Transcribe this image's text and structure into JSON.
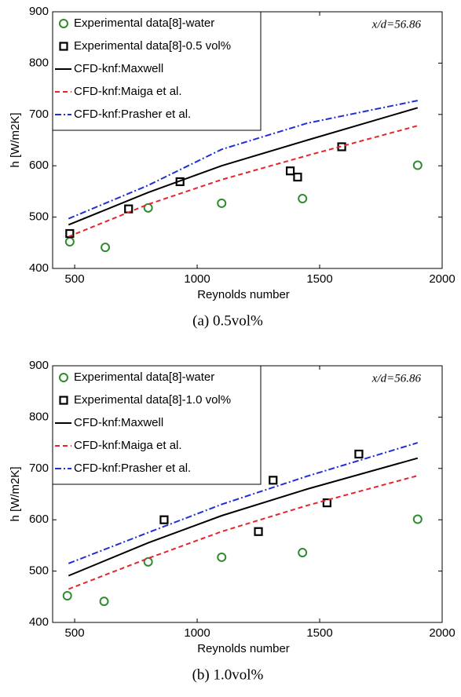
{
  "chart_data": [
    {
      "type": "line",
      "caption": "(a)  0.5vol%",
      "annotation": "x/d=56.86",
      "xlabel": "Reynolds number",
      "ylabel": "h [W/m2K]",
      "xlim": [
        410,
        2000
      ],
      "ylim": [
        400,
        900
      ],
      "xticks": [
        500,
        1000,
        1500,
        2000
      ],
      "yticks": [
        400,
        500,
        600,
        700,
        800,
        900
      ],
      "grid": false,
      "series": [
        {
          "name": "Experimental data[8]-water",
          "color": "#2e8b2e",
          "marker": "circle",
          "dash": "none",
          "x": [
            480,
            625,
            800,
            1100,
            1430,
            1900
          ],
          "values": [
            452,
            441,
            518,
            527,
            536,
            601
          ]
        },
        {
          "name": "Experimental data[8]-0.5 vol%",
          "color": "#000000",
          "marker": "square",
          "dash": "none",
          "x": [
            480,
            720,
            930,
            1380,
            1410,
            1590
          ],
          "values": [
            468,
            516,
            569,
            590,
            578,
            637
          ]
        },
        {
          "name": "CFD-knf:Maxwell",
          "color": "#000000",
          "marker": "none",
          "dash": "solid",
          "x": [
            475,
            800,
            1100,
            1450,
            1900
          ],
          "values": [
            485,
            548,
            600,
            650,
            713
          ]
        },
        {
          "name": "CFD-knf:Maiga et al.",
          "color": "#e8242b",
          "marker": "none",
          "dash": "dashed",
          "x": [
            475,
            800,
            1100,
            1450,
            1900
          ],
          "values": [
            462,
            525,
            573,
            620,
            678
          ]
        },
        {
          "name": "CFD-knf:Prasher et al.",
          "color": "#1f2fd6",
          "marker": "none",
          "dash": "dashdot",
          "x": [
            475,
            800,
            1100,
            1450,
            1900
          ],
          "values": [
            497,
            562,
            632,
            683,
            727
          ]
        }
      ]
    },
    {
      "type": "line",
      "caption": "(b)  1.0vol%",
      "annotation": "x/d=56.86",
      "xlabel": "Reynolds number",
      "ylabel": "h [W/m2K]",
      "xlim": [
        410,
        2000
      ],
      "ylim": [
        400,
        900
      ],
      "xticks": [
        500,
        1000,
        1500,
        2000
      ],
      "yticks": [
        400,
        500,
        600,
        700,
        800,
        900
      ],
      "grid": false,
      "series": [
        {
          "name": "Experimental data[8]-water",
          "color": "#2e8b2e",
          "marker": "circle",
          "dash": "none",
          "x": [
            470,
            620,
            800,
            1100,
            1430,
            1900
          ],
          "values": [
            452,
            441,
            518,
            527,
            536,
            601
          ]
        },
        {
          "name": "Experimental data[8]-1.0 vol%",
          "color": "#000000",
          "marker": "square",
          "dash": "none",
          "x": [
            865,
            1250,
            1310,
            1530,
            1660
          ],
          "values": [
            600,
            577,
            677,
            633,
            728
          ]
        },
        {
          "name": "CFD-knf:Maxwell",
          "color": "#000000",
          "marker": "none",
          "dash": "solid",
          "x": [
            475,
            800,
            1100,
            1450,
            1900
          ],
          "values": [
            491,
            555,
            608,
            660,
            720
          ]
        },
        {
          "name": "CFD-knf:Maiga et al.",
          "color": "#e8242b",
          "marker": "none",
          "dash": "dashed",
          "x": [
            475,
            800,
            1100,
            1450,
            1900
          ],
          "values": [
            465,
            525,
            577,
            628,
            686
          ]
        },
        {
          "name": "CFD-knf:Prasher et al.",
          "color": "#1f2fd6",
          "marker": "none",
          "dash": "dashdot",
          "x": [
            475,
            800,
            1100,
            1450,
            1900
          ],
          "values": [
            515,
            575,
            630,
            685,
            750
          ]
        }
      ]
    }
  ]
}
